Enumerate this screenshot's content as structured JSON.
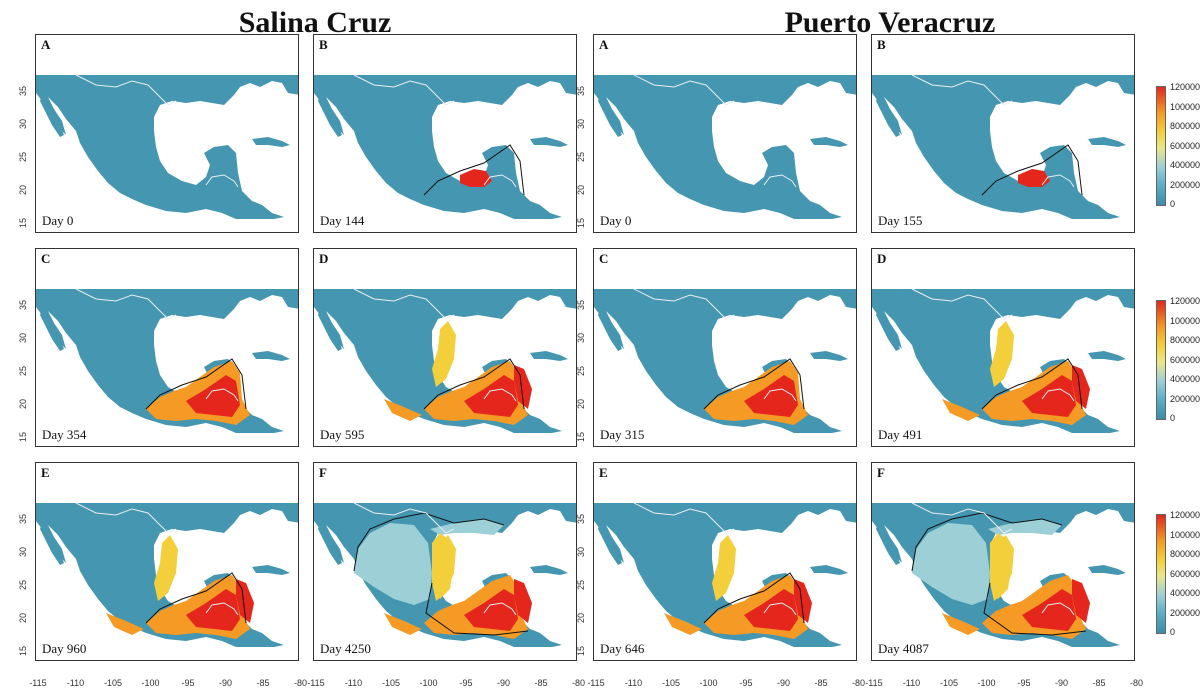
{
  "titles": {
    "left": "Salina Cruz",
    "right": "Puerto Veracruz"
  },
  "panels": [
    {
      "label": "A",
      "day": "Day 0",
      "spread": 0
    },
    {
      "label": "B",
      "day": "Day 144",
      "spread": 1
    },
    {
      "label": "A",
      "day": "Day 0",
      "spread": 0
    },
    {
      "label": "B",
      "day": "Day 155",
      "spread": 1
    },
    {
      "label": "C",
      "day": "Day 354",
      "spread": 2
    },
    {
      "label": "D",
      "day": "Day 595",
      "spread": 3
    },
    {
      "label": "C",
      "day": "Day 315",
      "spread": 2
    },
    {
      "label": "D",
      "day": "Day 491",
      "spread": 3
    },
    {
      "label": "E",
      "day": "Day 960",
      "spread": 3
    },
    {
      "label": "F",
      "day": "Day 4250",
      "spread": 4
    },
    {
      "label": "E",
      "day": "Day 646",
      "spread": 3
    },
    {
      "label": "F",
      "day": "Day 4087",
      "spread": 4
    }
  ],
  "y_ticks": [
    "35",
    "30",
    "25",
    "20",
    "15"
  ],
  "x_ticks": [
    "-115",
    "-110",
    "-105",
    "-100",
    "-95",
    "-90",
    "-85",
    "-80"
  ],
  "legend_labels": [
    "120000",
    "100000",
    "800000",
    "600000",
    "400000",
    "200000",
    "0"
  ],
  "colors": {
    "land": "#4596b0",
    "high": "#e4261c",
    "mid": "#f59a24",
    "low": "#f4cf3c",
    "pale": "#9ccfd6",
    "border": "#e8eef2",
    "outline": "#111111"
  }
}
